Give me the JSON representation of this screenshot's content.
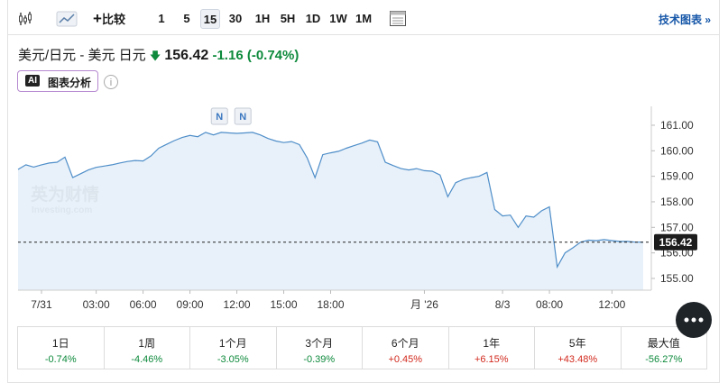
{
  "toolbar": {
    "compare": "比较",
    "buttons": [
      "1",
      "5",
      "15",
      "30",
      "1H",
      "5H",
      "1D",
      "1W",
      "1M"
    ],
    "active_index": 2,
    "tech_chart": "技术图表 »"
  },
  "header": {
    "instrument": "美元/日元 - 美元 日元",
    "price": "156.42",
    "change": "-1.16",
    "change_percent": "(-0.74%)",
    "ai_label": "AI",
    "ai_button": "图表分析"
  },
  "chart_data": {
    "type": "area",
    "color": "#4f8ec9",
    "fill": "#e4eef8",
    "watermark": {
      "brand": "英为财情",
      "sub": "Investing.com"
    },
    "annotations": [
      "N",
      "N"
    ],
    "last_price": 156.42,
    "categories": [
      null,
      null,
      null,
      "7/31",
      null,
      null,
      null,
      null,
      null,
      null,
      "03:00",
      null,
      null,
      null,
      null,
      null,
      "06:00",
      null,
      null,
      null,
      null,
      null,
      "09:00",
      null,
      null,
      null,
      null,
      null,
      "12:00",
      null,
      null,
      null,
      null,
      null,
      "15:00",
      null,
      null,
      null,
      null,
      null,
      "18:00",
      null,
      null,
      null,
      null,
      null,
      null,
      null,
      null,
      null,
      null,
      null,
      "月 '26",
      null,
      null,
      null,
      null,
      null,
      null,
      null,
      null,
      null,
      "8/3",
      null,
      null,
      null,
      null,
      null,
      "08:00",
      null,
      null,
      null,
      null,
      null,
      null,
      null,
      "12:00",
      null,
      null,
      null,
      null
    ],
    "values": [
      159.27,
      159.45,
      159.36,
      159.45,
      159.52,
      159.55,
      159.75,
      158.95,
      159.1,
      159.25,
      159.35,
      159.4,
      159.45,
      159.52,
      159.58,
      159.62,
      159.6,
      159.8,
      160.1,
      160.25,
      160.4,
      160.52,
      160.6,
      160.55,
      160.72,
      160.62,
      160.72,
      160.7,
      160.68,
      160.7,
      160.72,
      160.62,
      160.48,
      160.38,
      160.32,
      160.36,
      160.24,
      159.72,
      158.95,
      159.85,
      159.92,
      159.98,
      160.1,
      160.2,
      160.3,
      160.42,
      160.35,
      159.55,
      159.42,
      159.3,
      159.25,
      159.3,
      159.22,
      159.2,
      159.05,
      158.2,
      158.75,
      158.88,
      158.95,
      159.0,
      159.15,
      157.7,
      157.45,
      157.48,
      157.0,
      157.45,
      157.4,
      157.65,
      157.8,
      155.45,
      156.0,
      156.2,
      156.42,
      156.5,
      156.48,
      156.52,
      156.48,
      156.45,
      156.45,
      156.42,
      156.42
    ],
    "ylim": [
      154.54,
      161.74
    ],
    "yticks": [
      {
        "value": 155,
        "label": "155.00"
      },
      {
        "value": 156,
        "label": "156.00"
      },
      {
        "value": 157,
        "label": "157.00"
      },
      {
        "value": 158,
        "label": "158.00"
      },
      {
        "value": 159,
        "label": "159.00"
      },
      {
        "value": 160,
        "label": "160.00"
      },
      {
        "value": 161,
        "label": "161.00"
      }
    ]
  },
  "performance": [
    {
      "period": "1日",
      "change": "-0.74%"
    },
    {
      "period": "1周",
      "change": "-4.46%"
    },
    {
      "period": "1个月",
      "change": "-3.05%"
    },
    {
      "period": "3个月",
      "change": "-0.39%"
    },
    {
      "period": "6个月",
      "change": "+0.45%"
    },
    {
      "period": "1年",
      "change": "+6.15%"
    },
    {
      "period": "5年",
      "change": "+43.48%"
    },
    {
      "period": "最大值",
      "change": "-56.27%"
    }
  ]
}
